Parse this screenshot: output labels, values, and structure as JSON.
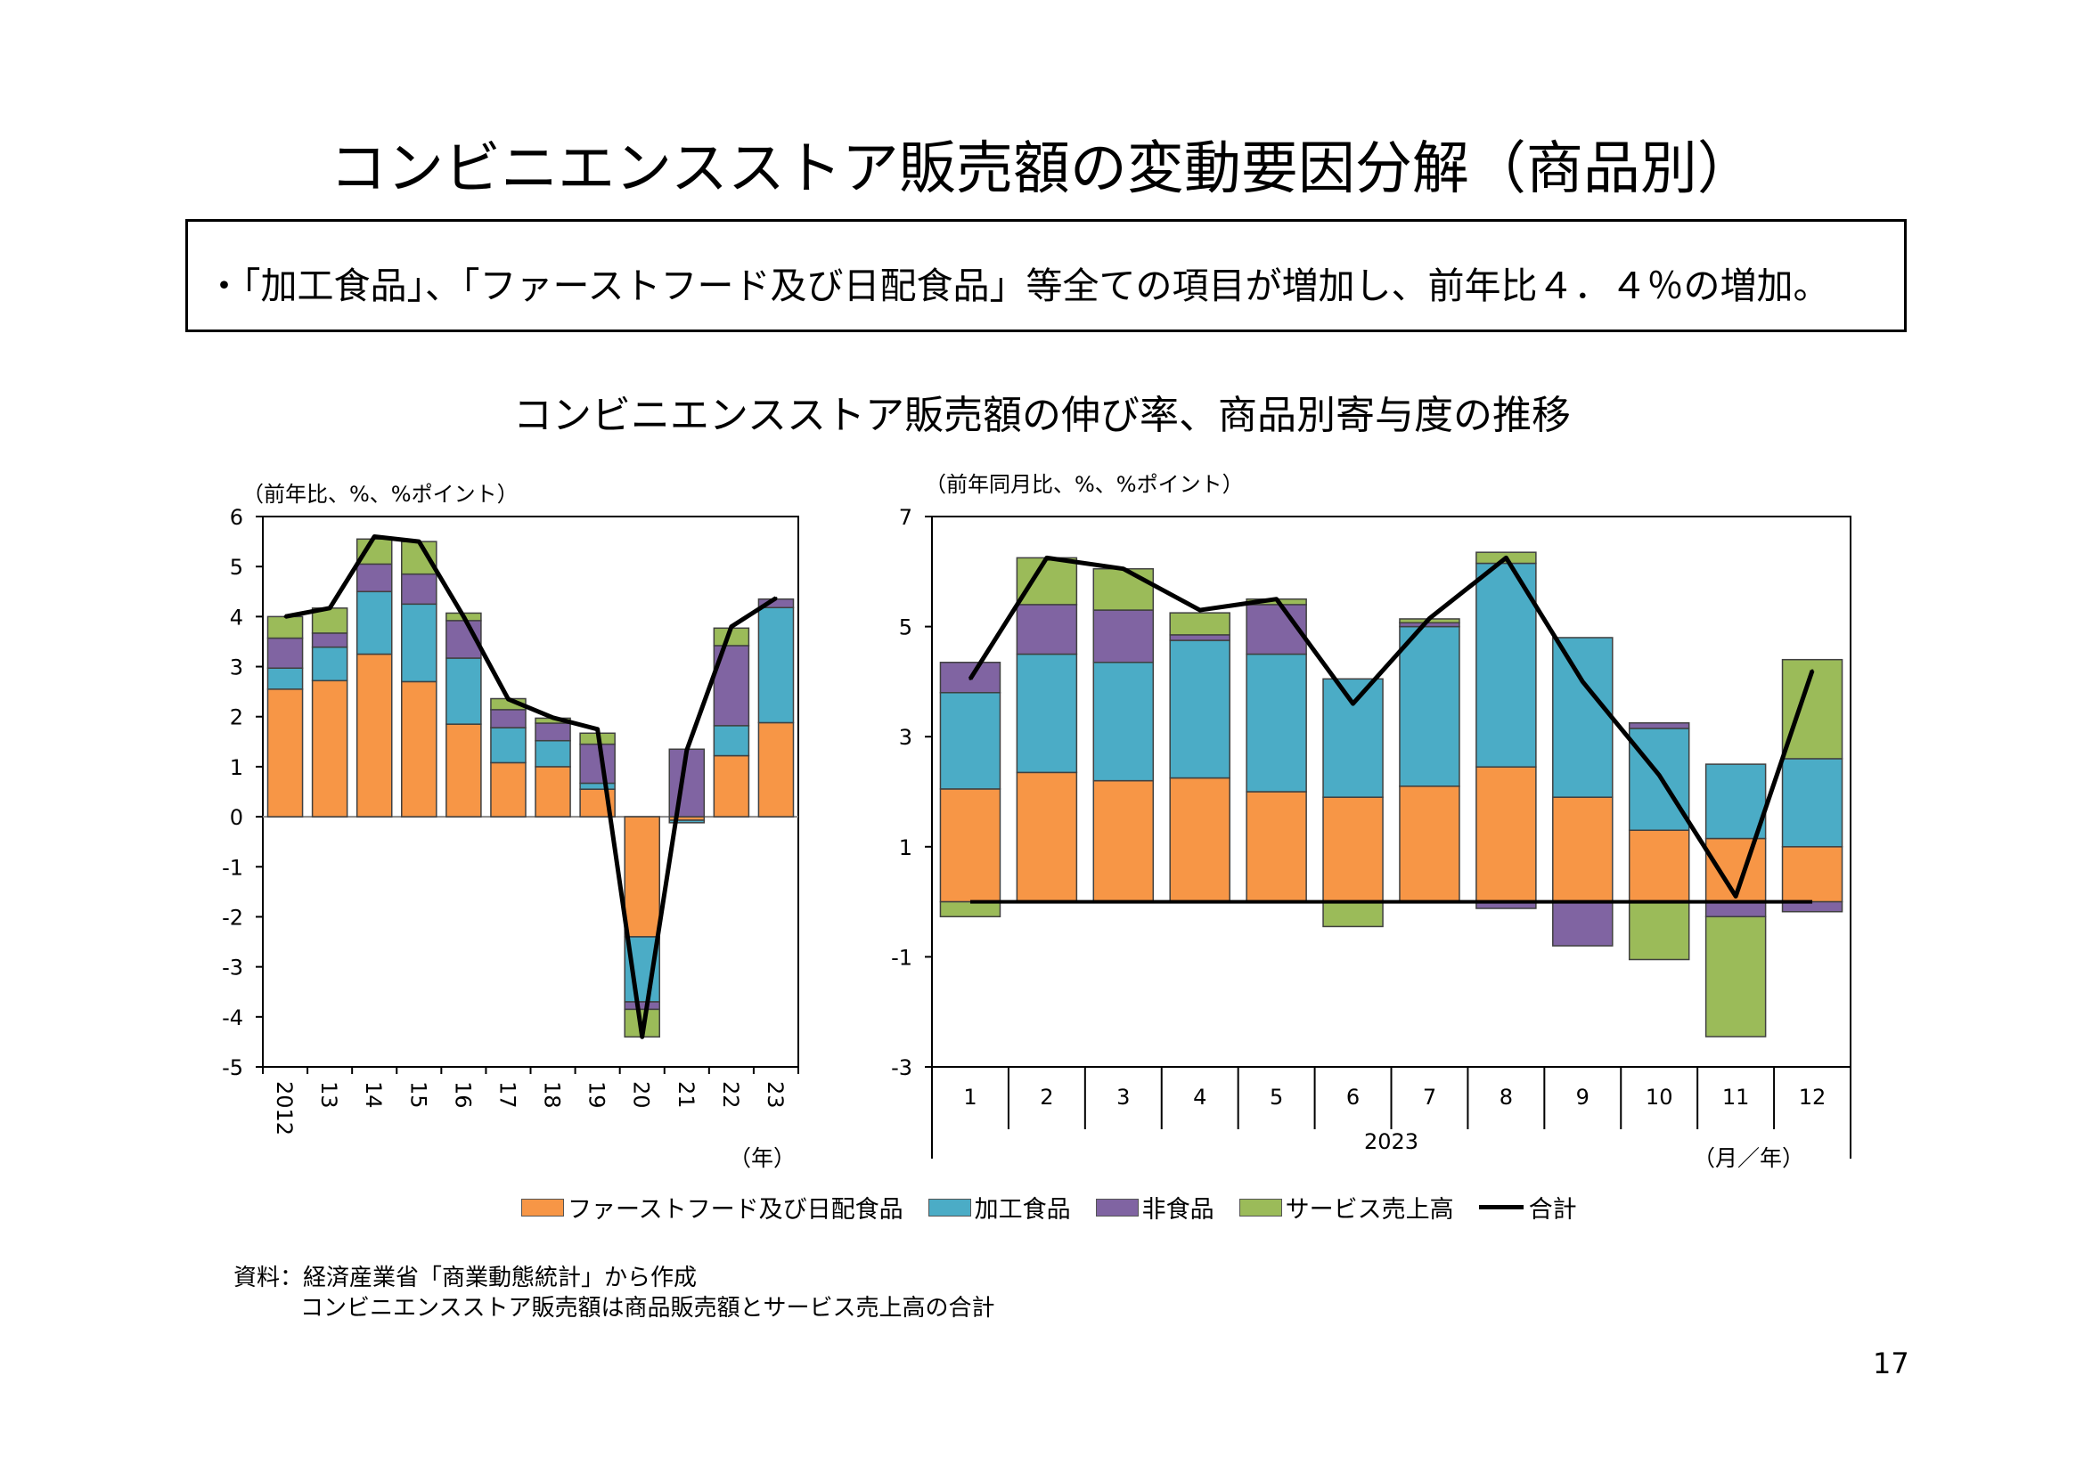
{
  "page": {
    "title": "コンビニエンスストア販売額の変動要因分解（商品別）",
    "summary": "・「加工食品」、「ファーストフード及び日配食品」等全ての項目が増加し、前年比４．４％の増加。",
    "chart_title": "コンビニエンスストア販売額の伸び率、商品別寄与度の推移",
    "source_line1": "資料：経済産業省「商業動態統計」から作成",
    "source_line2": "コンビニエンスストア販売額は商品販売額とサービス売上高の合計",
    "page_number": "17"
  },
  "legend": {
    "fastfood": "ファーストフード及び日配食品",
    "processed": "加工食品",
    "nonfood": "非食品",
    "service": "サービス売上高",
    "total": "合計"
  },
  "colors": {
    "fastfood": "#F79646",
    "processed": "#4BACC6",
    "nonfood": "#8064A2",
    "service": "#9BBB59",
    "total": "#000000",
    "frame": "#000000"
  },
  "chart_data": [
    {
      "type": "bar",
      "stacked": true,
      "unit_label": "（前年比、%、%ポイント）",
      "xlabel": "（年）",
      "ylim": [
        -5,
        6
      ],
      "yticks": [
        -5,
        -4,
        -3,
        -2,
        -1,
        0,
        1,
        2,
        3,
        4,
        5,
        6
      ],
      "categories": [
        "2012",
        "13",
        "14",
        "15",
        "16",
        "17",
        "18",
        "19",
        "20",
        "21",
        "22",
        "23"
      ],
      "series": [
        {
          "name": "ファーストフード及び日配食品",
          "key": "fastfood",
          "values": [
            2.55,
            2.72,
            3.25,
            2.7,
            1.85,
            1.08,
            1.0,
            0.55,
            -2.4,
            -0.07,
            1.22,
            1.88
          ]
        },
        {
          "name": "加工食品",
          "key": "processed",
          "values": [
            0.42,
            0.67,
            1.25,
            1.55,
            1.32,
            0.7,
            0.52,
            0.12,
            -1.3,
            -0.05,
            0.6,
            2.3
          ]
        },
        {
          "name": "非食品",
          "key": "nonfood",
          "values": [
            0.6,
            0.28,
            0.55,
            0.6,
            0.75,
            0.36,
            0.35,
            0.78,
            -0.15,
            1.35,
            1.6,
            0.17
          ]
        },
        {
          "name": "サービス売上高",
          "key": "service",
          "values": [
            0.43,
            0.5,
            0.5,
            0.65,
            0.15,
            0.22,
            0.1,
            0.22,
            -0.55,
            0.0,
            0.35,
            0.0
          ]
        }
      ],
      "total": {
        "name": "合計",
        "values": [
          4.0,
          4.17,
          5.6,
          5.5,
          4.0,
          2.35,
          1.98,
          1.75,
          -4.4,
          1.33,
          3.8,
          4.37
        ]
      }
    },
    {
      "type": "bar",
      "stacked": true,
      "unit_label": "（前年同月比、%、%ポイント）",
      "year_label": "2023",
      "xlabel": "（月／年）",
      "ylim": [
        -3,
        7
      ],
      "yticks": [
        -3,
        -1,
        1,
        3,
        5,
        7
      ],
      "categories": [
        "1",
        "2",
        "3",
        "4",
        "5",
        "6",
        "7",
        "8",
        "9",
        "10",
        "11",
        "12"
      ],
      "series": [
        {
          "name": "ファーストフード及び日配食品",
          "key": "fastfood",
          "values": [
            2.05,
            2.35,
            2.2,
            2.25,
            2.0,
            1.9,
            2.1,
            2.45,
            1.9,
            1.3,
            1.15,
            1.0
          ]
        },
        {
          "name": "加工食品",
          "key": "processed",
          "values": [
            1.75,
            2.15,
            2.15,
            2.5,
            2.5,
            2.15,
            2.9,
            3.7,
            2.9,
            1.85,
            1.35,
            1.6
          ]
        },
        {
          "name": "非食品",
          "key": "nonfood",
          "values": [
            0.55,
            0.9,
            0.95,
            0.1,
            0.9,
            0.0,
            0.07,
            -0.12,
            -0.8,
            0.1,
            -0.27,
            -0.18
          ]
        },
        {
          "name": "サービス売上高",
          "key": "service",
          "values": [
            -0.27,
            0.85,
            0.75,
            0.4,
            0.1,
            -0.45,
            0.07,
            0.2,
            0.0,
            -1.05,
            -2.18,
            1.8
          ]
        }
      ],
      "total": {
        "name": "合計",
        "values": [
          4.05,
          6.25,
          6.05,
          5.3,
          5.5,
          3.6,
          5.15,
          6.25,
          4.0,
          2.3,
          0.1,
          4.2
        ]
      },
      "zero_line": 0
    }
  ]
}
